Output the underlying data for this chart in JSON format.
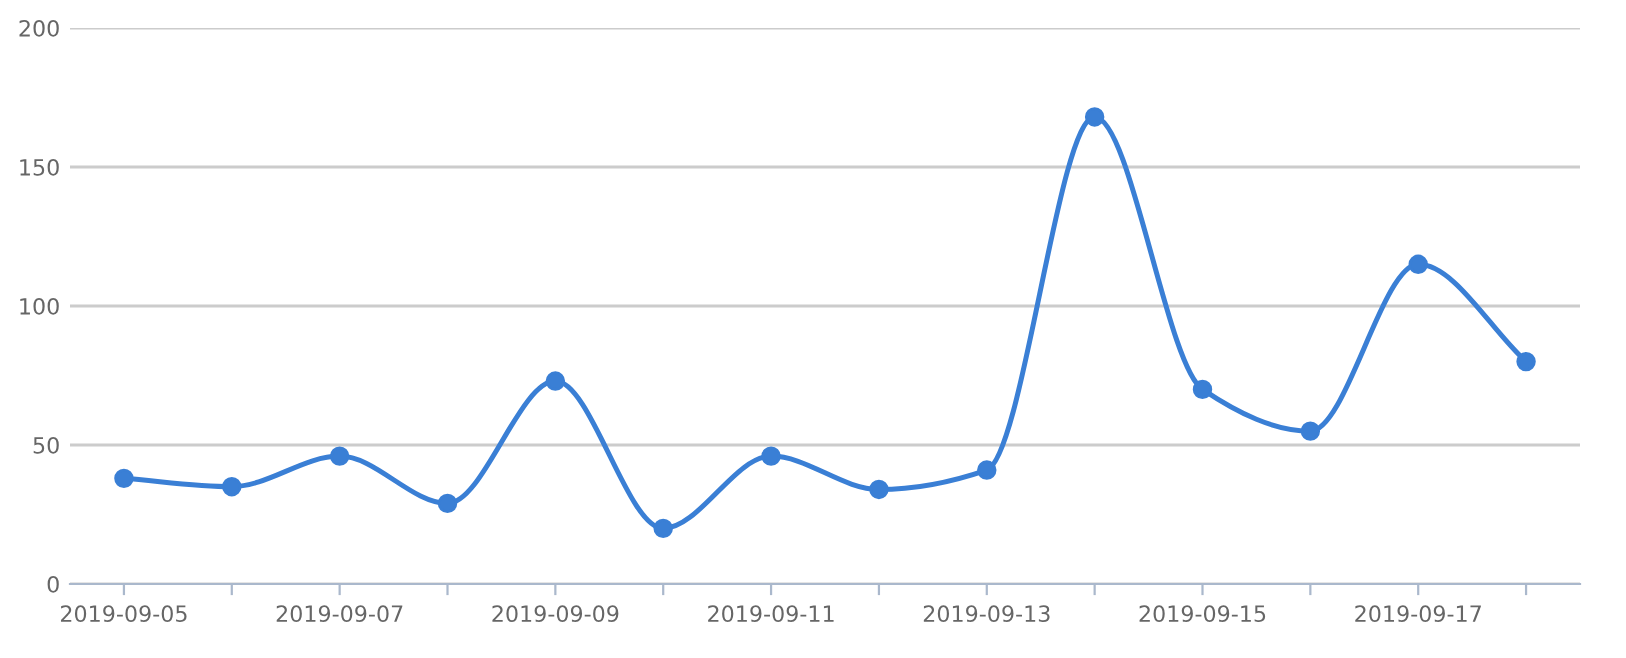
{
  "chart_data": {
    "type": "line",
    "categories": [
      "2019-09-05",
      null,
      "2019-09-07",
      null,
      "2019-09-09",
      null,
      "2019-09-11",
      null,
      "2019-09-13",
      null,
      "2019-09-15",
      null,
      "2019-09-17",
      null
    ],
    "series": [
      {
        "color": "#3a7fd5",
        "values": [
          38,
          35,
          46,
          29,
          73,
          20,
          46,
          34,
          41,
          168,
          70,
          55,
          115,
          80
        ]
      }
    ],
    "ylim": [
      0,
      200
    ],
    "yticks": [
      0,
      50,
      100,
      150,
      200
    ],
    "grid": "y",
    "marker": "circle",
    "line_style": "solid",
    "legend": false
  }
}
